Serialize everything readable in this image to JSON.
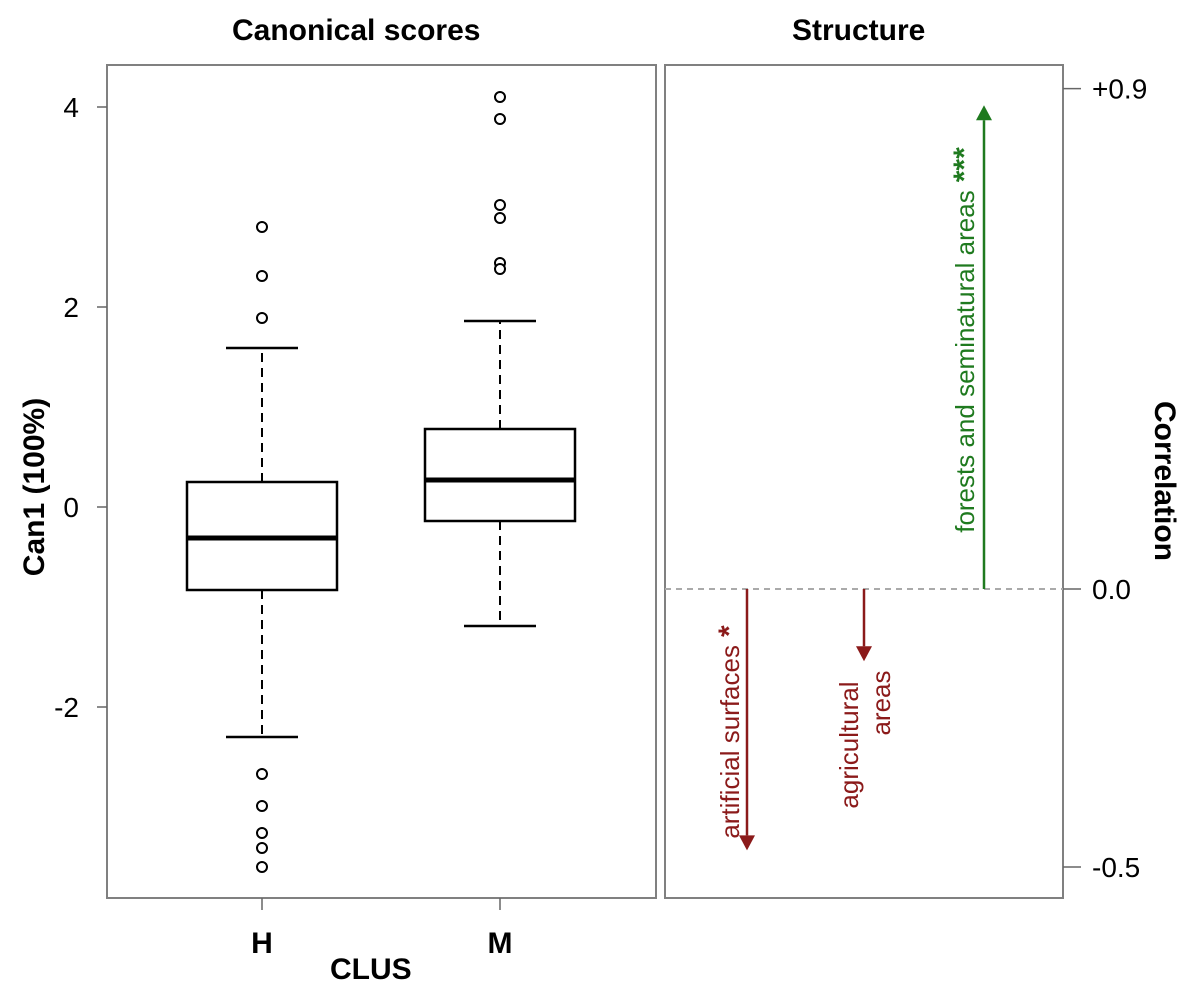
{
  "chart_data": [
    {
      "type": "box",
      "title": "Canonical scores",
      "xlabel": "CLUS",
      "ylabel": "Can1 (100%)",
      "categories": [
        "H",
        "M"
      ],
      "ylim": [
        -3.8,
        4.4
      ],
      "yticks": [
        -2,
        0,
        2,
        4
      ],
      "ytick_labels": [
        "-2",
        "0",
        "2",
        "4"
      ],
      "boxes": [
        {
          "category": "H",
          "whisker_low": -2.3,
          "q1": -0.83,
          "median": -0.31,
          "q3": 0.25,
          "whisker_high": 1.59,
          "outliers": [
            2.8,
            2.31,
            1.89,
            -2.67,
            -2.99,
            -3.26,
            -3.41,
            -3.6
          ]
        },
        {
          "category": "M",
          "whisker_low": -1.19,
          "q1": -0.14,
          "median": 0.27,
          "q3": 0.78,
          "whisker_high": 1.86,
          "outliers": [
            4.1,
            3.88,
            3.02,
            2.89,
            2.44,
            2.38
          ]
        }
      ]
    },
    {
      "type": "bar",
      "title": "Structure",
      "ylabel": "Correlation",
      "ylim": [
        -0.5,
        0.9
      ],
      "yticks": [
        0.9,
        0.0,
        -0.5
      ],
      "ytick_labels": [
        "+0.9",
        "0.0",
        "-0.5"
      ],
      "reference_line": 0.0,
      "vectors": [
        {
          "label": "artificial surfaces",
          "significance": "*",
          "value": -0.47,
          "color": "#8b1a1a"
        },
        {
          "label_lines": [
            "agricultural",
            "areas"
          ],
          "significance": "",
          "value": -0.13,
          "color": "#8b1a1a"
        },
        {
          "label": "forests and seminatural areas",
          "significance": "***",
          "value": 0.87,
          "color": "#1f7a1f"
        }
      ]
    }
  ]
}
